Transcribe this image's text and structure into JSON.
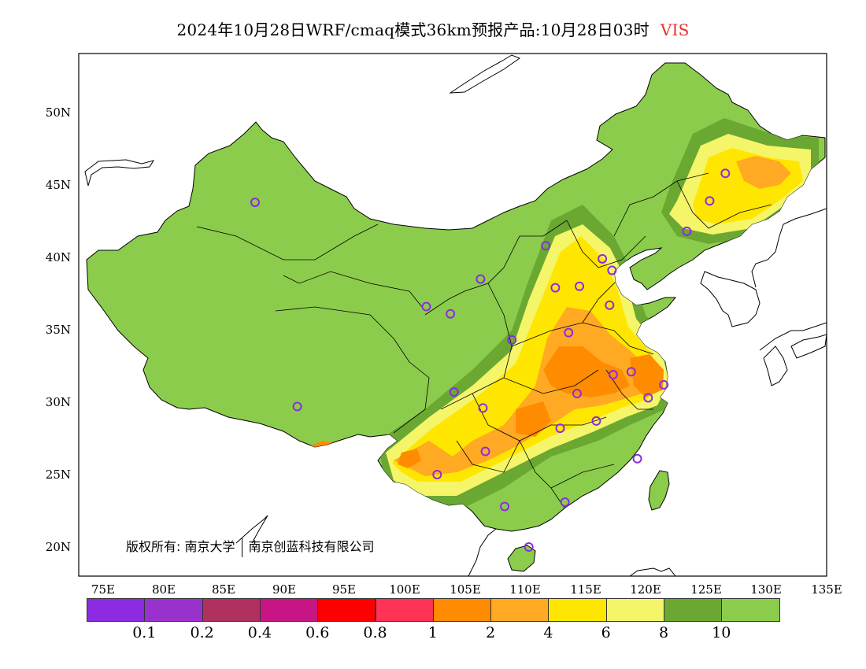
{
  "title": {
    "main": "2024年10月28日WRF/cmaq模式36km预报产品:10月28日03时",
    "variable": "VIS"
  },
  "colors": {
    "land_base": "#8ccc4c",
    "variable_label": "#e8302a"
  },
  "y_axis": [
    "50N",
    "45N",
    "40N",
    "35N",
    "30N",
    "25N",
    "20N"
  ],
  "x_axis": [
    "75E",
    "80E",
    "85E",
    "90E",
    "95E",
    "100E",
    "105E",
    "110E",
    "115E",
    "120E",
    "125E",
    "130E",
    "135E"
  ],
  "copyright": {
    "owner_prefix": "版权所有:",
    "org1": "南京大学",
    "org2": "南京创蓝科技有限公司"
  },
  "legend": {
    "colors": [
      "#8c2be2",
      "#9932cc",
      "#b03060",
      "#c71585",
      "#ff0000",
      "#ff3355",
      "#ff8c00",
      "#ffaa22",
      "#ffe600",
      "#f5f56a",
      "#6aa832",
      "#8ccc4c"
    ],
    "labels": [
      "0.1",
      "0.2",
      "0.4",
      "0.6",
      "0.8",
      "1",
      "2",
      "4",
      "6",
      "8",
      "10"
    ]
  },
  "stations_count_label": "",
  "map_data": {
    "lon_range": [
      73,
      135
    ],
    "lat_range": [
      18,
      54
    ],
    "stations": [
      [
        87.6,
        43.8
      ],
      [
        91.1,
        29.7
      ],
      [
        101.8,
        36.6
      ],
      [
        103.8,
        36.1
      ],
      [
        106.3,
        38.5
      ],
      [
        108.9,
        34.3
      ],
      [
        104.1,
        30.7
      ],
      [
        106.5,
        29.6
      ],
      [
        106.7,
        26.6
      ],
      [
        102.7,
        25.0
      ],
      [
        108.3,
        22.8
      ],
      [
        110.3,
        20.0
      ],
      [
        113.3,
        23.1
      ],
      [
        112.9,
        28.2
      ],
      [
        114.3,
        30.6
      ],
      [
        115.9,
        28.7
      ],
      [
        117.3,
        31.9
      ],
      [
        118.8,
        32.1
      ],
      [
        120.2,
        30.3
      ],
      [
        121.5,
        31.2
      ],
      [
        119.3,
        26.1
      ],
      [
        117.0,
        36.7
      ],
      [
        113.6,
        34.8
      ],
      [
        112.5,
        37.9
      ],
      [
        114.5,
        38.0
      ],
      [
        111.7,
        40.8
      ],
      [
        116.4,
        39.9
      ],
      [
        117.2,
        39.1
      ],
      [
        123.4,
        41.8
      ],
      [
        125.3,
        43.9
      ],
      [
        126.6,
        45.8
      ]
    ]
  }
}
